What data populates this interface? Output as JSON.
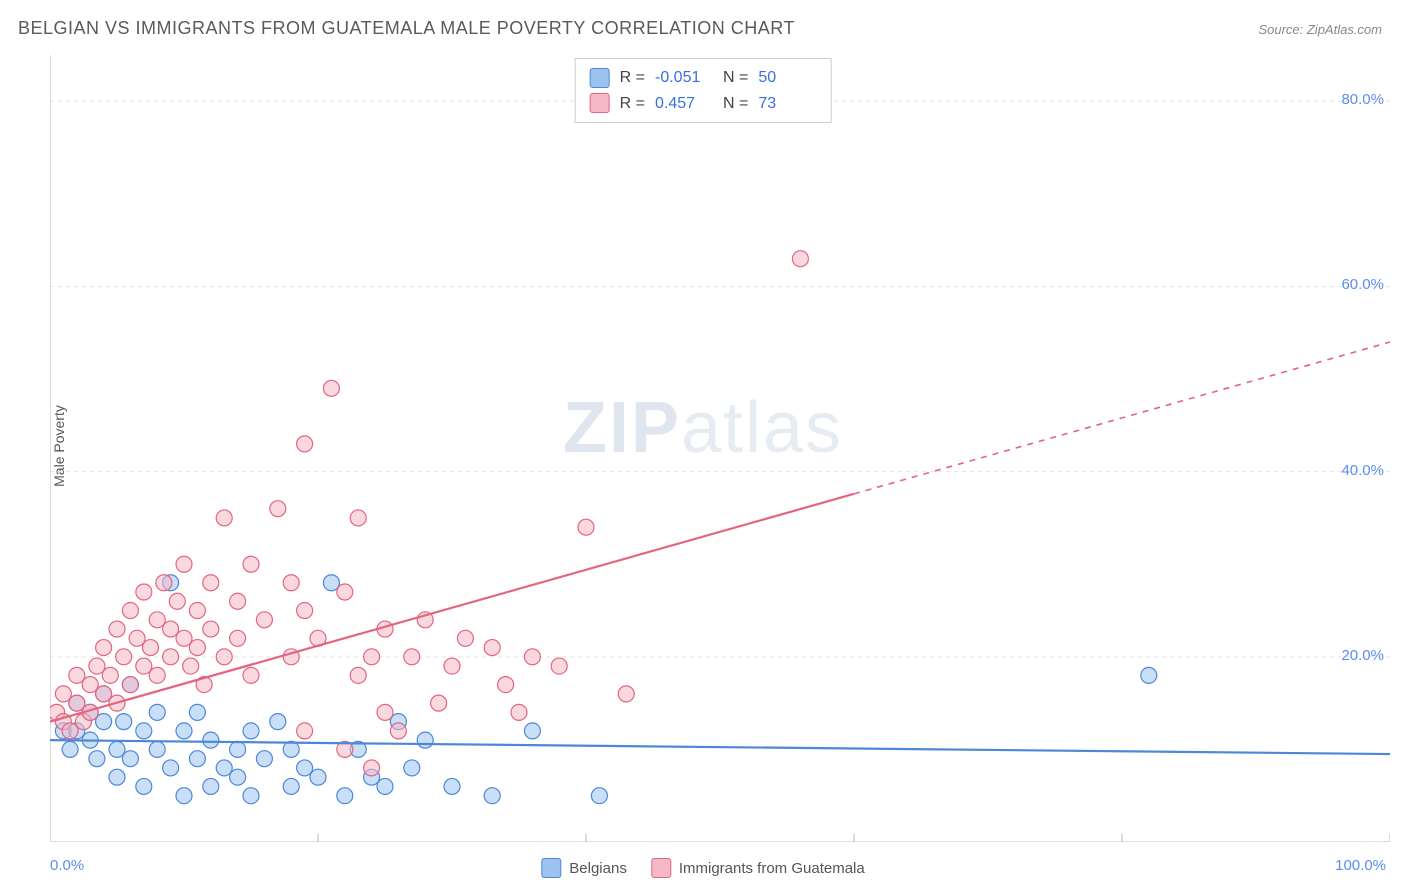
{
  "title": "BELGIAN VS IMMIGRANTS FROM GUATEMALA MALE POVERTY CORRELATION CHART",
  "source_label": "Source: ",
  "source_name": "ZipAtlas.com",
  "ylabel": "Male Poverty",
  "watermark_bold": "ZIP",
  "watermark_light": "atlas",
  "chart": {
    "type": "scatter",
    "xlim": [
      0,
      100
    ],
    "ylim": [
      0,
      85
    ],
    "x_min_label": "0.0%",
    "x_max_label": "100.0%",
    "y_ticks": [
      20,
      40,
      60,
      80
    ],
    "y_tick_labels": [
      "20.0%",
      "40.0%",
      "60.0%",
      "80.0%"
    ],
    "x_ticks": [
      20,
      40,
      60,
      80,
      100
    ],
    "background_color": "#ffffff",
    "grid_color": "#e5e5e5",
    "axis_color": "#c9c9c9",
    "tick_color": "#bbbbbb",
    "marker_radius": 8,
    "marker_opacity": 0.55,
    "series": [
      {
        "id": "belgians",
        "label": "Belgians",
        "fill": "#9cc2f0",
        "stroke": "#4d88d6",
        "R": "-0.051",
        "N": "50",
        "trend": {
          "y_at_x0": 11.0,
          "y_at_x100": 9.5,
          "dash": false,
          "solid_until_x": 100
        },
        "points": [
          [
            1,
            12
          ],
          [
            1.5,
            10
          ],
          [
            2,
            15
          ],
          [
            2,
            12
          ],
          [
            3,
            11
          ],
          [
            3,
            14
          ],
          [
            3.5,
            9
          ],
          [
            4,
            13
          ],
          [
            4,
            16
          ],
          [
            5,
            10
          ],
          [
            5,
            7
          ],
          [
            5.5,
            13
          ],
          [
            6,
            9
          ],
          [
            6,
            17
          ],
          [
            7,
            12
          ],
          [
            7,
            6
          ],
          [
            8,
            14
          ],
          [
            8,
            10
          ],
          [
            9,
            28
          ],
          [
            9,
            8
          ],
          [
            10,
            12
          ],
          [
            10,
            5
          ],
          [
            11,
            9
          ],
          [
            11,
            14
          ],
          [
            12,
            6
          ],
          [
            12,
            11
          ],
          [
            13,
            8
          ],
          [
            14,
            10
          ],
          [
            14,
            7
          ],
          [
            15,
            12
          ],
          [
            15,
            5
          ],
          [
            16,
            9
          ],
          [
            17,
            13
          ],
          [
            18,
            6
          ],
          [
            18,
            10
          ],
          [
            19,
            8
          ],
          [
            20,
            7
          ],
          [
            21,
            28
          ],
          [
            22,
            5
          ],
          [
            23,
            10
          ],
          [
            24,
            7
          ],
          [
            25,
            6
          ],
          [
            26,
            13
          ],
          [
            27,
            8
          ],
          [
            28,
            11
          ],
          [
            30,
            6
          ],
          [
            33,
            5
          ],
          [
            36,
            12
          ],
          [
            41,
            5
          ],
          [
            82,
            18
          ]
        ]
      },
      {
        "id": "guatemala",
        "label": "Immigrants from Guatemala",
        "fill": "#f5b8c6",
        "stroke": "#e3657f",
        "R": "0.457",
        "N": "73",
        "trend": {
          "y_at_x0": 13.0,
          "y_at_x100": 54.0,
          "dash": true,
          "solid_until_x": 60
        },
        "points": [
          [
            0.5,
            14
          ],
          [
            1,
            13
          ],
          [
            1,
            16
          ],
          [
            1.5,
            12
          ],
          [
            2,
            15
          ],
          [
            2,
            18
          ],
          [
            2.5,
            13
          ],
          [
            3,
            17
          ],
          [
            3,
            14
          ],
          [
            3.5,
            19
          ],
          [
            4,
            16
          ],
          [
            4,
            21
          ],
          [
            4.5,
            18
          ],
          [
            5,
            15
          ],
          [
            5,
            23
          ],
          [
            5.5,
            20
          ],
          [
            6,
            17
          ],
          [
            6,
            25
          ],
          [
            6.5,
            22
          ],
          [
            7,
            19
          ],
          [
            7,
            27
          ],
          [
            7.5,
            21
          ],
          [
            8,
            24
          ],
          [
            8,
            18
          ],
          [
            8.5,
            28
          ],
          [
            9,
            23
          ],
          [
            9,
            20
          ],
          [
            9.5,
            26
          ],
          [
            10,
            30
          ],
          [
            10,
            22
          ],
          [
            10.5,
            19
          ],
          [
            11,
            25
          ],
          [
            11,
            21
          ],
          [
            11.5,
            17
          ],
          [
            12,
            28
          ],
          [
            12,
            23
          ],
          [
            13,
            20
          ],
          [
            13,
            35
          ],
          [
            14,
            26
          ],
          [
            14,
            22
          ],
          [
            15,
            18
          ],
          [
            15,
            30
          ],
          [
            16,
            24
          ],
          [
            17,
            36
          ],
          [
            18,
            20
          ],
          [
            18,
            28
          ],
          [
            19,
            43
          ],
          [
            19,
            25
          ],
          [
            20,
            22
          ],
          [
            21,
            49
          ],
          [
            22,
            27
          ],
          [
            23,
            18
          ],
          [
            23,
            35
          ],
          [
            24,
            20
          ],
          [
            25,
            23
          ],
          [
            25,
            14
          ],
          [
            26,
            12
          ],
          [
            27,
            20
          ],
          [
            28,
            24
          ],
          [
            29,
            15
          ],
          [
            30,
            19
          ],
          [
            31,
            22
          ],
          [
            33,
            21
          ],
          [
            34,
            17
          ],
          [
            35,
            14
          ],
          [
            36,
            20
          ],
          [
            38,
            19
          ],
          [
            40,
            34
          ],
          [
            43,
            16
          ],
          [
            56,
            63
          ],
          [
            19,
            12
          ],
          [
            22,
            10
          ],
          [
            24,
            8
          ]
        ]
      }
    ]
  },
  "legend": {
    "position": "bottom-center",
    "corr_box_labels": {
      "R": "R =",
      "N": "N ="
    }
  }
}
